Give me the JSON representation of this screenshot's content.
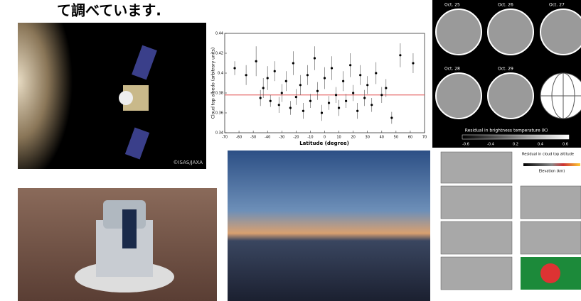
{
  "header": {
    "title": "て調べています."
  },
  "spacecraft_image": {
    "credit": "©ISAS/JAXA"
  },
  "albedo_plot": {
    "x_label": "Latitude (degree)",
    "y_label": "Cloud top albedo (arbitrary units)",
    "xlim": [
      -70,
      70
    ],
    "xticks": [
      -70,
      -60,
      -50,
      -40,
      -30,
      -20,
      -10,
      0,
      10,
      20,
      30,
      40,
      50,
      60,
      70
    ],
    "ylim": [
      0.34,
      0.44
    ],
    "yticks": [
      0.34,
      0.36,
      0.38,
      0.4,
      0.42,
      0.44
    ],
    "reference_line": 0.378,
    "x": [
      -63,
      -55,
      -48,
      -45,
      -43,
      -40,
      -38,
      -35,
      -32,
      -30,
      -27,
      -24,
      -22,
      -20,
      -17,
      -15,
      -12,
      -10,
      -7,
      -5,
      -2,
      0,
      3,
      5,
      8,
      10,
      13,
      15,
      18,
      20,
      23,
      25,
      28,
      30,
      33,
      36,
      40,
      43,
      47,
      53,
      62
    ],
    "y": [
      0.405,
      0.398,
      0.412,
      0.375,
      0.385,
      0.395,
      0.372,
      0.402,
      0.368,
      0.38,
      0.392,
      0.365,
      0.41,
      0.376,
      0.388,
      0.362,
      0.398,
      0.372,
      0.415,
      0.382,
      0.36,
      0.395,
      0.37,
      0.405,
      0.378,
      0.365,
      0.392,
      0.372,
      0.408,
      0.38,
      0.362,
      0.398,
      0.375,
      0.388,
      0.368,
      0.4,
      0.378,
      0.385,
      0.355,
      0.418,
      0.41
    ],
    "err": [
      0.007,
      0.01,
      0.015,
      0.008,
      0.01,
      0.012,
      0.006,
      0.01,
      0.008,
      0.009,
      0.01,
      0.007,
      0.012,
      0.008,
      0.01,
      0.008,
      0.01,
      0.007,
      0.012,
      0.009,
      0.008,
      0.011,
      0.007,
      0.012,
      0.008,
      0.008,
      0.01,
      0.007,
      0.012,
      0.008,
      0.008,
      0.01,
      0.008,
      0.009,
      0.007,
      0.011,
      0.008,
      0.009,
      0.006,
      0.012,
      0.01
    ]
  },
  "venus_panel": {
    "dates": [
      "Oct. 25",
      "Oct. 26",
      "Oct. 27",
      "Oct. 28",
      "Oct. 29"
    ],
    "colorbar_label": "Residual in brightness temperature (K)",
    "colorbar_ticks": [
      "-0.6",
      "-0.4",
      "0.2",
      "0.4",
      "0.6"
    ]
  },
  "altitude_panel": {
    "title": "Residual in cloud top altitude",
    "colorbar_label": "Elevation (km)"
  }
}
